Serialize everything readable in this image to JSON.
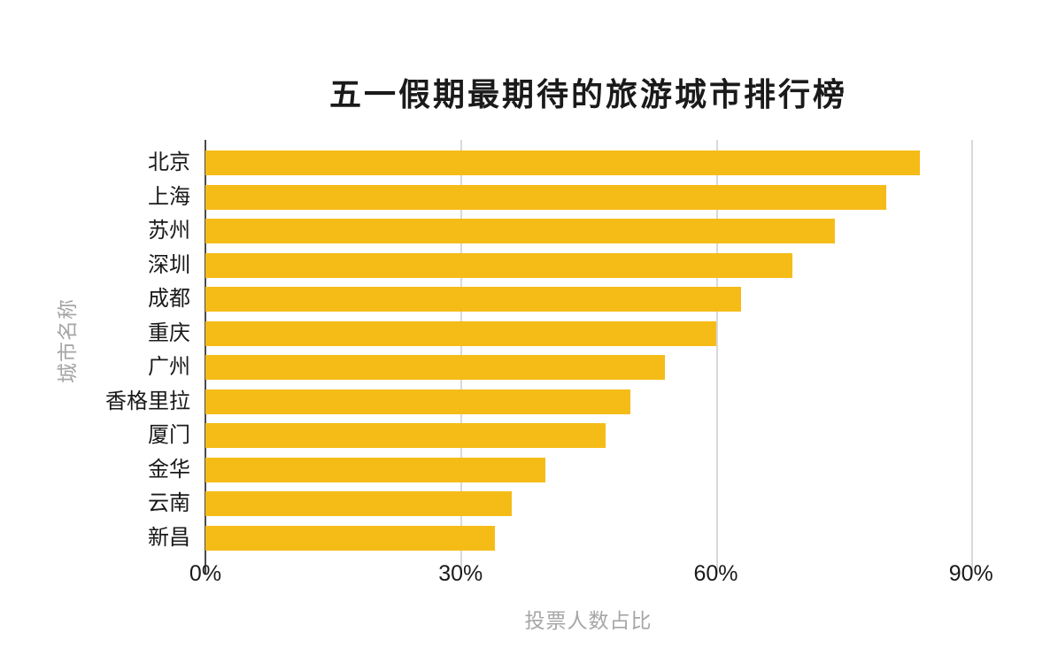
{
  "chart_data": {
    "type": "bar",
    "orientation": "horizontal",
    "title": "五一假期最期待的旅游城市排行榜",
    "xlabel": "投票人数占比",
    "ylabel": "城市名称",
    "categories": [
      "北京",
      "上海",
      "苏州",
      "深圳",
      "成都",
      "重庆",
      "广州",
      "香格里拉",
      "厦门",
      "金华",
      "云南",
      "新昌"
    ],
    "values": [
      84,
      80,
      74,
      69,
      63,
      60,
      54,
      50,
      47,
      40,
      36,
      34
    ],
    "unit": "%",
    "xticks": [
      0,
      30,
      60,
      90
    ],
    "xtick_labels": [
      "0%",
      "30%",
      "60%",
      "90%"
    ],
    "xlim": [
      0,
      94.5
    ],
    "grid": true,
    "legend": false,
    "colors": {
      "bar": "#F5BC18",
      "axis_line": "#4a4a4a",
      "gridline": "#d9d9d9",
      "text": "#1a1a1a",
      "muted_text": "#a6a6a6",
      "background": "#ffffff"
    }
  }
}
